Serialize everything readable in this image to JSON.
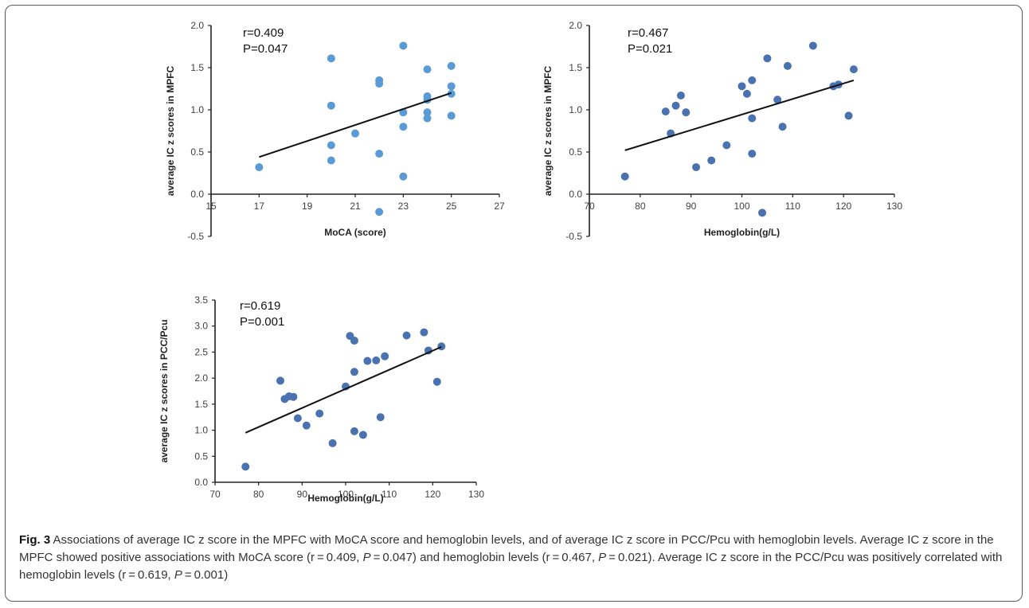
{
  "caption": {
    "label": "Fig. 3",
    "parts": [
      "Associations of average IC z score in the MPFC with MoCA score and hemoglobin levels, and of average IC z score in PCC/Pcu with hemoglobin levels. Average IC z score in the MPFC showed positive associations with MoCA score (r = 0.409, ",
      "P",
      " = 0.047) and hemoglobin levels (r = 0.467, ",
      "P",
      " = 0.021). Average IC z score in the PCC/Pcu was positively correlated with hemoglobin levels (r = 0.619, ",
      "P",
      " = 0.001)"
    ]
  },
  "chart_data": [
    {
      "type": "scatter",
      "xlabel": "MoCA (score)",
      "ylabel": "average IC z scores in MPFC",
      "annotation": [
        "r=0.409",
        "P=0.047"
      ],
      "xlim": [
        15,
        27
      ],
      "ylim": [
        -0.5,
        2.0
      ],
      "xticks": [
        "15",
        "17",
        "19",
        "21",
        "23",
        "25",
        "27"
      ],
      "yticks": [
        "-0.5",
        "0.0",
        "0.5",
        "1.0",
        "1.5",
        "2.0"
      ],
      "point_color": "#5b9bd5",
      "trendline": [
        [
          17,
          0.44
        ],
        [
          25,
          1.2
        ]
      ],
      "points": [
        [
          17,
          0.32
        ],
        [
          20,
          1.61
        ],
        [
          20,
          1.05
        ],
        [
          20,
          0.58
        ],
        [
          20,
          0.4
        ],
        [
          21,
          0.72
        ],
        [
          22,
          1.35
        ],
        [
          22,
          1.31
        ],
        [
          22,
          0.48
        ],
        [
          22,
          -0.21
        ],
        [
          23,
          1.76
        ],
        [
          23,
          0.97
        ],
        [
          23,
          0.8
        ],
        [
          23,
          0.21
        ],
        [
          24,
          1.48
        ],
        [
          24,
          1.16
        ],
        [
          24,
          1.12
        ],
        [
          24,
          0.97
        ],
        [
          24,
          0.9
        ],
        [
          25,
          1.52
        ],
        [
          25,
          1.28
        ],
        [
          25,
          1.19
        ],
        [
          25,
          0.93
        ]
      ]
    },
    {
      "type": "scatter",
      "xlabel": "Hemoglobin(g/L)",
      "ylabel": "average IC z scores in MPFC",
      "annotation": [
        "r=0.467",
        "P=0.021"
      ],
      "xlim": [
        70,
        130
      ],
      "ylim": [
        -0.5,
        2.0
      ],
      "xticks": [
        "70",
        "80",
        "90",
        "100",
        "110",
        "120",
        "130"
      ],
      "yticks": [
        "-0.5",
        "0.0",
        "0.5",
        "1.0",
        "1.5",
        "2.0"
      ],
      "point_color": "#4a72b0",
      "trendline": [
        [
          77,
          0.52
        ],
        [
          122,
          1.35
        ]
      ],
      "points": [
        [
          77,
          0.21
        ],
        [
          85,
          0.98
        ],
        [
          86,
          0.72
        ],
        [
          87,
          1.05
        ],
        [
          88,
          1.17
        ],
        [
          89,
          0.97
        ],
        [
          91,
          0.32
        ],
        [
          94,
          0.4
        ],
        [
          97,
          0.58
        ],
        [
          100,
          1.28
        ],
        [
          101,
          1.19
        ],
        [
          102,
          1.35
        ],
        [
          102,
          0.9
        ],
        [
          102,
          0.48
        ],
        [
          104,
          -0.22
        ],
        [
          105,
          1.61
        ],
        [
          107,
          1.12
        ],
        [
          108,
          0.8
        ],
        [
          109,
          1.52
        ],
        [
          114,
          1.76
        ],
        [
          118,
          1.28
        ],
        [
          119,
          1.3
        ],
        [
          121,
          0.93
        ],
        [
          122,
          1.48
        ]
      ]
    },
    {
      "type": "scatter",
      "xlabel": "Hemoglobin(g/L)",
      "ylabel": "average IC z scores in PCC/Pcu",
      "annotation": [
        "r=0.619",
        "P=0.001"
      ],
      "xlim": [
        70,
        130
      ],
      "ylim": [
        0.0,
        3.5
      ],
      "xticks": [
        "70",
        "80",
        "90",
        "100",
        "110",
        "120",
        "130"
      ],
      "yticks": [
        "0.0",
        "0.5",
        "1.0",
        "1.5",
        "2.0",
        "2.5",
        "3.0",
        "3.5"
      ],
      "point_color": "#4a72b0",
      "trendline": [
        [
          77,
          0.95
        ],
        [
          122,
          2.6
        ]
      ],
      "points": [
        [
          77,
          0.3
        ],
        [
          85,
          1.95
        ],
        [
          86,
          1.6
        ],
        [
          87,
          1.65
        ],
        [
          88,
          1.64
        ],
        [
          89,
          1.23
        ],
        [
          91,
          1.09
        ],
        [
          94,
          1.32
        ],
        [
          97,
          0.75
        ],
        [
          100,
          1.84
        ],
        [
          101,
          2.81
        ],
        [
          102,
          2.72
        ],
        [
          102,
          2.12
        ],
        [
          102,
          0.98
        ],
        [
          104,
          0.91
        ],
        [
          105,
          2.33
        ],
        [
          107,
          2.34
        ],
        [
          108,
          1.25
        ],
        [
          109,
          2.42
        ],
        [
          114,
          2.82
        ],
        [
          118,
          2.88
        ],
        [
          119,
          2.53
        ],
        [
          121,
          1.93
        ],
        [
          122,
          2.61
        ]
      ]
    }
  ]
}
